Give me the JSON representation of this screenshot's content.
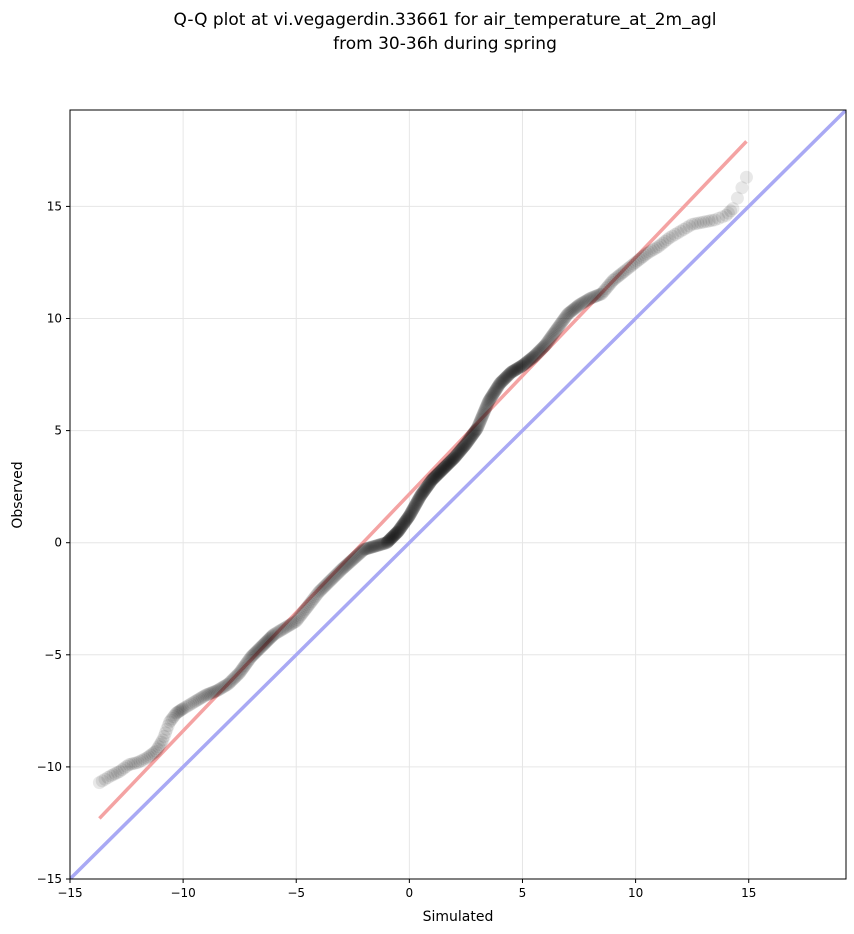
{
  "chart_data": {
    "type": "scatter",
    "title": "Q-Q plot at vi.vegagerdin.33661 for air_temperature_at_2m_agl",
    "subtitle": "from 30-36h during spring",
    "xlabel": "Simulated",
    "ylabel": "Observed",
    "xlim": [
      -15,
      19.3
    ],
    "ylim": [
      -15,
      19.3
    ],
    "xticks": [
      "−15",
      "−10",
      "−5",
      "0",
      "5",
      "10",
      "15"
    ],
    "yticks": [
      "−15",
      "−10",
      "−5",
      "0",
      "5",
      "10",
      "15"
    ],
    "xtick_values": [
      -15,
      -10,
      -5,
      0,
      5,
      10,
      15
    ],
    "ytick_values": [
      -15,
      -10,
      -5,
      0,
      5,
      10,
      15
    ],
    "grid": true,
    "colors": {
      "points": "#000000",
      "fit_line": "#f4a3a3",
      "identity_line": "#a9a9f4",
      "grid": "#e6e6e6"
    },
    "quantile_curve": [
      [
        -13.7,
        -10.7
      ],
      [
        -13.2,
        -10.4
      ],
      [
        -12.8,
        -10.2
      ],
      [
        -12.4,
        -9.9
      ],
      [
        -12.0,
        -9.8
      ],
      [
        -11.6,
        -9.6
      ],
      [
        -11.2,
        -9.3
      ],
      [
        -10.9,
        -8.8
      ],
      [
        -10.6,
        -8.0
      ],
      [
        -10.3,
        -7.6
      ],
      [
        -10.0,
        -7.4
      ],
      [
        -9.5,
        -7.1
      ],
      [
        -9.0,
        -6.8
      ],
      [
        -8.5,
        -6.6
      ],
      [
        -8.0,
        -6.3
      ],
      [
        -7.5,
        -5.8
      ],
      [
        -7.0,
        -5.1
      ],
      [
        -6.5,
        -4.6
      ],
      [
        -6.0,
        -4.1
      ],
      [
        -5.0,
        -3.5
      ],
      [
        -4.0,
        -2.2
      ],
      [
        -3.0,
        -1.2
      ],
      [
        -2.0,
        -0.3
      ],
      [
        -1.0,
        0.0
      ],
      [
        -0.5,
        0.5
      ],
      [
        0.0,
        1.2
      ],
      [
        0.5,
        2.1
      ],
      [
        1.0,
        2.8
      ],
      [
        1.5,
        3.3
      ],
      [
        2.0,
        3.8
      ],
      [
        2.5,
        4.4
      ],
      [
        3.0,
        5.1
      ],
      [
        3.5,
        6.3
      ],
      [
        4.0,
        7.1
      ],
      [
        4.5,
        7.6
      ],
      [
        5.0,
        7.9
      ],
      [
        5.5,
        8.3
      ],
      [
        6.0,
        8.8
      ],
      [
        6.5,
        9.5
      ],
      [
        7.0,
        10.2
      ],
      [
        7.5,
        10.6
      ],
      [
        8.0,
        10.9
      ],
      [
        8.5,
        11.1
      ],
      [
        9.0,
        11.7
      ],
      [
        9.5,
        12.1
      ],
      [
        10.0,
        12.5
      ],
      [
        10.5,
        12.9
      ],
      [
        11.0,
        13.2
      ],
      [
        11.5,
        13.6
      ],
      [
        12.0,
        13.9
      ],
      [
        12.5,
        14.2
      ],
      [
        13.0,
        14.3
      ],
      [
        13.5,
        14.4
      ],
      [
        14.0,
        14.6
      ],
      [
        14.3,
        14.9
      ],
      [
        14.9,
        16.3
      ]
    ],
    "fit_line": [
      [
        -13.7,
        -12.3
      ],
      [
        14.9,
        17.9
      ]
    ],
    "identity_line": [
      [
        -15,
        -15
      ],
      [
        19.3,
        19.3
      ]
    ]
  }
}
